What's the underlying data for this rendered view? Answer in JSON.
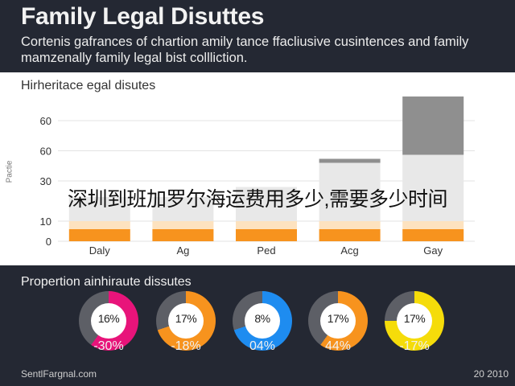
{
  "header": {
    "title": "Family Legal Disuttes",
    "subtitle": "Cortenis gafrances of chartion amily tance ffacliusive cusintences and family mamzenally family legal bist collliction."
  },
  "overlay_text": "深圳到班加罗尔海运费用多少,需要多少时间",
  "chart_data": {
    "type": "bar",
    "title": "Hirheritace egal disutes",
    "ylabel": "Pactie",
    "ylim": [
      0,
      72
    ],
    "yticks": [
      "0",
      "10",
      "30",
      "60",
      "60"
    ],
    "categories": [
      "Daly",
      "Ag",
      "Ped",
      "Acg",
      "Gay"
    ],
    "series": [
      {
        "values": [
          6,
          6,
          6,
          6,
          6
        ],
        "color": "#f7931e"
      },
      {
        "values": [
          4,
          4,
          4,
          4,
          4
        ],
        "color": "#fde2bf"
      },
      {
        "values": [
          12,
          12,
          17,
          29,
          33
        ],
        "color": "#e8e8e8"
      },
      {
        "values": [
          0,
          0,
          0,
          2,
          29
        ],
        "color": "#8f8f8f"
      }
    ]
  },
  "donuts": {
    "title": "Propertion ainhiraute dissutes",
    "items": [
      {
        "label": "16%",
        "percent": "-30%",
        "fill": 0.6,
        "color": "#e8147a"
      },
      {
        "label": "17%",
        "percent": "-18%",
        "fill": 0.7,
        "color": "#f7931e"
      },
      {
        "label": "8%",
        "percent": "04%",
        "fill": 0.7,
        "color": "#1e8cf0"
      },
      {
        "label": "17%",
        "percent": "44%",
        "fill": 0.6,
        "color": "#f7931e"
      },
      {
        "label": "17%",
        "percent": "-17%",
        "fill": 0.75,
        "color": "#f5dc0a"
      }
    ]
  },
  "footer": {
    "left": "SentlFargnal.com",
    "right": "20 2010"
  }
}
